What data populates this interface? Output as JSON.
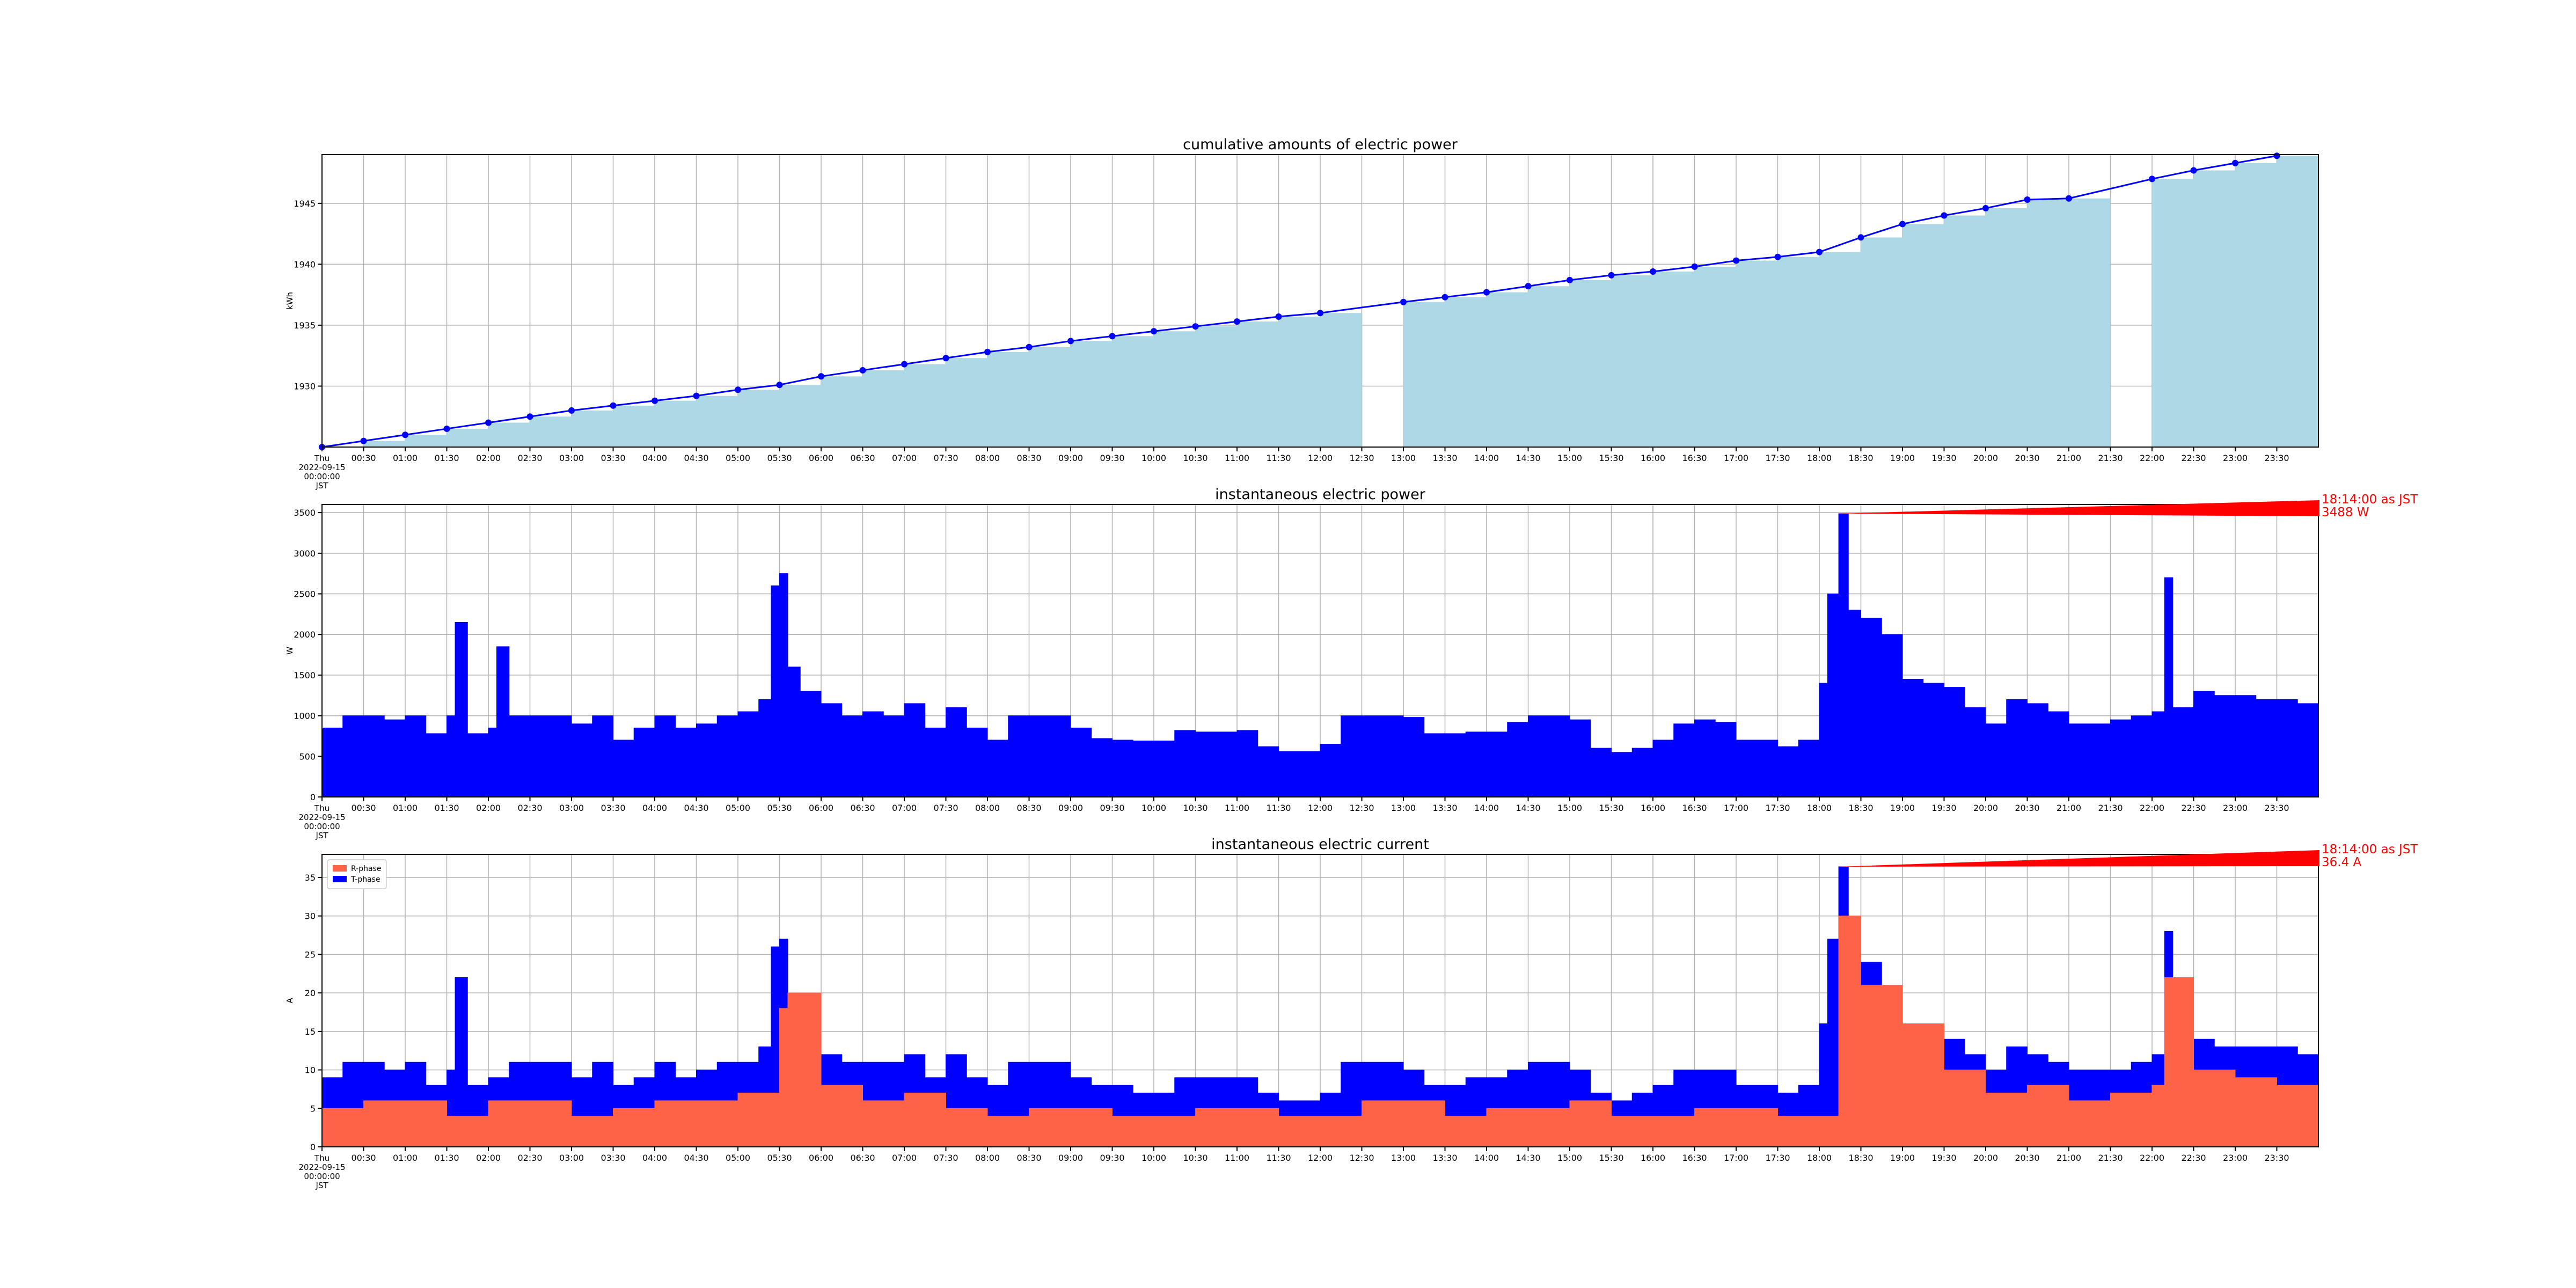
{
  "time_axis": {
    "start_label": [
      "Thu",
      "2022-09-15",
      "00:00:00",
      "JST"
    ],
    "tick_labels": [
      "00:30",
      "01:00",
      "01:30",
      "02:00",
      "02:30",
      "03:00",
      "03:30",
      "04:00",
      "04:30",
      "05:00",
      "05:30",
      "06:00",
      "06:30",
      "07:00",
      "07:30",
      "08:00",
      "08:30",
      "09:00",
      "09:30",
      "10:00",
      "10:30",
      "11:00",
      "11:30",
      "12:00",
      "12:30",
      "13:00",
      "13:30",
      "14:00",
      "14:30",
      "15:00",
      "15:30",
      "16:00",
      "16:30",
      "17:00",
      "17:30",
      "18:00",
      "18:30",
      "19:00",
      "19:30",
      "20:00",
      "20:30",
      "21:00",
      "21:30",
      "22:00",
      "22:30",
      "23:00",
      "23:30"
    ],
    "range_hours": [
      0,
      24
    ]
  },
  "colors": {
    "cumulative_fill": "#add8e6",
    "cumulative_line": "#0000ff",
    "power_fill": "#0000ff",
    "r_phase": "#ff6347",
    "t_phase": "#0000ff",
    "annotation": "#ff0000",
    "grid": "#b0b0b0"
  },
  "chart_data": [
    {
      "type": "area",
      "title": "cumulative amounts of electric power",
      "ylabel": "kWh",
      "ylim": [
        1925,
        1949
      ],
      "yticks": [
        1930,
        1935,
        1940,
        1945
      ],
      "grid": true,
      "series": [
        {
          "x_hours": [
            0,
            0.5,
            1,
            1.5,
            2,
            2.5,
            3,
            3.5,
            4,
            4.5,
            5,
            5.5,
            6,
            6.5,
            7,
            7.5,
            8,
            8.5,
            9,
            9.5,
            10,
            10.5,
            11,
            11.5,
            12,
            13,
            13.5,
            14,
            14.5,
            15,
            15.5,
            16,
            16.5,
            17,
            17.5,
            18,
            18.5,
            19,
            19.5,
            20,
            20.5,
            21,
            22,
            22.5,
            23,
            23.5
          ],
          "values": [
            1925.0,
            1925.5,
            1926.0,
            1926.5,
            1927.0,
            1927.5,
            1928.0,
            1928.4,
            1928.8,
            1929.2,
            1929.7,
            1930.1,
            1930.8,
            1931.3,
            1931.8,
            1932.3,
            1932.8,
            1933.2,
            1933.7,
            1934.1,
            1934.5,
            1934.9,
            1935.3,
            1935.7,
            1936.0,
            1936.9,
            1937.3,
            1937.7,
            1938.2,
            1938.7,
            1939.1,
            1939.4,
            1939.8,
            1940.3,
            1940.6,
            1941.0,
            1942.2,
            1943.3,
            1944.0,
            1944.6,
            1945.3,
            1945.4,
            1947.0,
            1947.7,
            1948.3,
            1948.9
          ]
        }
      ]
    },
    {
      "type": "area",
      "title": "instantaneous electric power",
      "ylabel": "W",
      "ylim": [
        0,
        3600
      ],
      "yticks": [
        0,
        500,
        1000,
        1500,
        2000,
        2500,
        3000,
        3500
      ],
      "grid": true,
      "annotation": {
        "label": [
          "18:14:00 as JST",
          "3488 W"
        ],
        "x_hours": 18.233,
        "y": 3488
      },
      "series": [
        {
          "x_hours": [
            0,
            0.25,
            0.5,
            0.75,
            1,
            1.25,
            1.5,
            1.6,
            1.75,
            2,
            2.1,
            2.25,
            2.5,
            2.75,
            3,
            3.25,
            3.5,
            3.75,
            4,
            4.25,
            4.5,
            4.75,
            5,
            5.25,
            5.4,
            5.5,
            5.6,
            5.75,
            6,
            6.25,
            6.5,
            6.75,
            7,
            7.25,
            7.5,
            7.75,
            8,
            8.25,
            8.5,
            8.75,
            9,
            9.25,
            9.5,
            9.75,
            10,
            10.25,
            10.5,
            10.75,
            11,
            11.25,
            11.5,
            11.75,
            12,
            12.25,
            12.5,
            12.75,
            13,
            13.25,
            13.5,
            13.75,
            14,
            14.25,
            14.5,
            14.75,
            15,
            15.25,
            15.5,
            15.75,
            16,
            16.25,
            16.5,
            16.75,
            17,
            17.25,
            17.5,
            17.75,
            18,
            18.1,
            18.233,
            18.35,
            18.5,
            18.75,
            19,
            19.25,
            19.5,
            19.75,
            20,
            20.25,
            20.5,
            20.75,
            21,
            21.25,
            21.5,
            21.75,
            22,
            22.15,
            22.25,
            22.5,
            22.75,
            23,
            23.25,
            23.5,
            23.75,
            24
          ],
          "values": [
            850,
            1000,
            1000,
            950,
            1000,
            780,
            1000,
            2150,
            780,
            850,
            1850,
            1000,
            1000,
            1000,
            900,
            1000,
            700,
            850,
            1000,
            850,
            900,
            1000,
            1050,
            1200,
            2600,
            2750,
            1600,
            1300,
            1150,
            1000,
            1050,
            1000,
            1150,
            850,
            1100,
            850,
            700,
            1000,
            1000,
            1000,
            850,
            720,
            700,
            690,
            690,
            820,
            800,
            800,
            820,
            620,
            560,
            560,
            650,
            1000,
            1000,
            1000,
            980,
            780,
            780,
            800,
            800,
            920,
            1000,
            1000,
            950,
            600,
            550,
            600,
            700,
            900,
            950,
            920,
            700,
            700,
            620,
            700,
            1400,
            2500,
            3488,
            2300,
            2200,
            2000,
            1450,
            1400,
            1350,
            1100,
            900,
            1200,
            1150,
            1050,
            900,
            900,
            950,
            1000,
            1050,
            2700,
            1100,
            1300,
            1250,
            1250,
            1200,
            1200,
            1150,
            1000
          ]
        }
      ]
    },
    {
      "type": "area",
      "title": "instantaneous electric current",
      "ylabel": "A",
      "ylim": [
        0,
        38
      ],
      "yticks": [
        0,
        5,
        10,
        15,
        20,
        25,
        30,
        35
      ],
      "grid": true,
      "legend": "top-left",
      "annotation": {
        "label": [
          "18:14:00 as JST",
          "36.4 A"
        ],
        "x_hours": 18.233,
        "y": 36.4
      },
      "series": [
        {
          "name": "R-phase",
          "x_hours": [
            0,
            0.5,
            1,
            1.5,
            2,
            2.5,
            3,
            3.5,
            4,
            4.5,
            5,
            5.5,
            5.6,
            6,
            6.5,
            7,
            7.5,
            8,
            8.5,
            9,
            9.5,
            10,
            10.5,
            11,
            11.5,
            12,
            12.5,
            13,
            13.5,
            14,
            14.5,
            15,
            15.5,
            16,
            16.5,
            17,
            17.5,
            18,
            18.233,
            18.5,
            19,
            19.5,
            20,
            20.5,
            21,
            21.5,
            22,
            22.15,
            22.5,
            23,
            23.5,
            24
          ],
          "values": [
            5,
            6,
            6,
            4,
            6,
            6,
            4,
            5,
            6,
            6,
            7,
            18,
            20,
            8,
            6,
            7,
            5,
            4,
            5,
            5,
            4,
            4,
            5,
            5,
            4,
            4,
            6,
            6,
            4,
            5,
            5,
            6,
            4,
            4,
            5,
            5,
            4,
            4,
            30,
            21,
            16,
            10,
            7,
            8,
            6,
            7,
            8,
            22,
            10,
            9,
            8,
            6
          ]
        },
        {
          "name": "T-phase",
          "x_hours": [
            0,
            0.25,
            0.5,
            0.75,
            1,
            1.25,
            1.5,
            1.6,
            1.75,
            2,
            2.25,
            2.5,
            2.75,
            3,
            3.25,
            3.5,
            3.75,
            4,
            4.25,
            4.5,
            4.75,
            5,
            5.25,
            5.4,
            5.5,
            5.6,
            5.75,
            6,
            6.25,
            6.5,
            6.75,
            7,
            7.25,
            7.5,
            7.75,
            8,
            8.25,
            8.5,
            8.75,
            9,
            9.25,
            9.5,
            9.75,
            10,
            10.25,
            10.5,
            10.75,
            11,
            11.25,
            11.5,
            11.75,
            12,
            12.25,
            12.5,
            12.75,
            13,
            13.25,
            13.5,
            13.75,
            14,
            14.25,
            14.5,
            14.75,
            15,
            15.25,
            15.5,
            15.75,
            16,
            16.25,
            16.5,
            16.75,
            17,
            17.25,
            17.5,
            17.75,
            18,
            18.1,
            18.233,
            18.35,
            18.5,
            18.75,
            19,
            19.25,
            19.5,
            19.75,
            20,
            20.25,
            20.5,
            20.75,
            21,
            21.25,
            21.5,
            21.75,
            22,
            22.15,
            22.25,
            22.5,
            22.75,
            23,
            23.25,
            23.5,
            23.75,
            24
          ],
          "values": [
            9,
            11,
            11,
            10,
            11,
            8,
            10,
            22,
            8,
            9,
            11,
            11,
            11,
            9,
            11,
            8,
            9,
            11,
            9,
            10,
            11,
            11,
            13,
            26,
            27,
            18,
            14,
            12,
            11,
            11,
            11,
            12,
            9,
            12,
            9,
            8,
            11,
            11,
            11,
            9,
            8,
            8,
            7,
            7,
            9,
            9,
            9,
            9,
            7,
            6,
            6,
            7,
            11,
            11,
            11,
            10,
            8,
            8,
            9,
            9,
            10,
            11,
            11,
            10,
            7,
            6,
            7,
            8,
            10,
            10,
            10,
            8,
            8,
            7,
            8,
            16,
            27,
            36.4,
            25,
            24,
            21,
            15,
            15,
            14,
            12,
            10,
            13,
            12,
            11,
            10,
            10,
            10,
            11,
            12,
            28,
            12,
            14,
            13,
            13,
            13,
            13,
            12,
            11
          ]
        }
      ]
    }
  ]
}
